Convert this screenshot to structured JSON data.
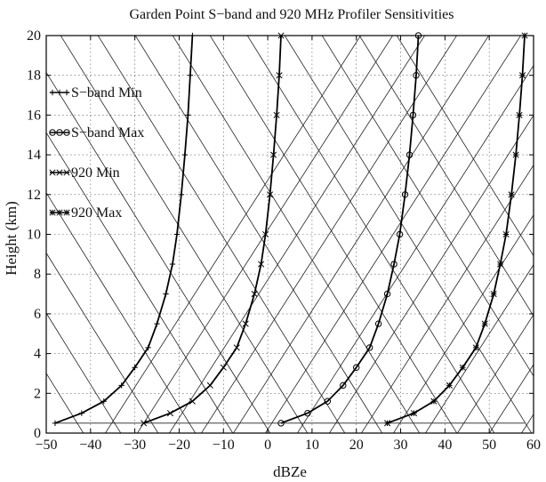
{
  "chart_data": {
    "type": "line",
    "title": "Garden Point S−band and 920 MHz Profiler Sensitivities",
    "xlabel": "dBZe",
    "ylabel": "Height (km)",
    "xlim": [
      -50,
      60
    ],
    "ylim": [
      0,
      20
    ],
    "xticks": [
      -50,
      -40,
      -30,
      -20,
      -10,
      0,
      10,
      20,
      30,
      40,
      50,
      60
    ],
    "yticks": [
      0,
      2,
      4,
      6,
      8,
      10,
      12,
      14,
      16,
      18,
      20
    ],
    "grid": true,
    "legend_position": "top-left",
    "background_hatching": true,
    "series": [
      {
        "name": "S−band Min",
        "marker": "plus",
        "x": [
          -48,
          -42,
          -37,
          -33,
          -30,
          -27,
          -25,
          -23,
          -21.5,
          -20.5,
          -19.5,
          -18.7,
          -18,
          -17.5,
          -17
        ],
        "y": [
          0.5,
          1.0,
          1.6,
          2.4,
          3.3,
          4.3,
          5.5,
          7.0,
          8.5,
          10.0,
          12.0,
          14.0,
          16.0,
          18.0,
          20.0
        ]
      },
      {
        "name": "S−band Max",
        "marker": "circle",
        "x": [
          3,
          9,
          13.5,
          17,
          20,
          23,
          25,
          27,
          28.5,
          29.8,
          31,
          32,
          32.8,
          33.5,
          34
        ],
        "y": [
          0.5,
          1.0,
          1.6,
          2.4,
          3.3,
          4.3,
          5.5,
          7.0,
          8.5,
          10.0,
          12.0,
          14.0,
          16.0,
          18.0,
          20.0
        ]
      },
      {
        "name": "920 Min",
        "marker": "x",
        "x": [
          -28,
          -22,
          -17,
          -13,
          -10,
          -7,
          -5,
          -3,
          -1.5,
          -0.5,
          0.5,
          1.3,
          2,
          2.6,
          3
        ],
        "y": [
          0.5,
          1.0,
          1.6,
          2.4,
          3.3,
          4.3,
          5.5,
          7.0,
          8.5,
          10.0,
          12.0,
          14.0,
          16.0,
          18.0,
          20.0
        ]
      },
      {
        "name": "920 Max",
        "marker": "star",
        "x": [
          27,
          33,
          37.5,
          41,
          44,
          47,
          49,
          51,
          52.5,
          53.8,
          55,
          56,
          56.8,
          57.5,
          58
        ],
        "y": [
          0.5,
          1.0,
          1.6,
          2.4,
          3.3,
          4.3,
          5.5,
          7.0,
          8.5,
          10.0,
          12.0,
          14.0,
          16.0,
          18.0,
          20.0
        ]
      }
    ]
  }
}
